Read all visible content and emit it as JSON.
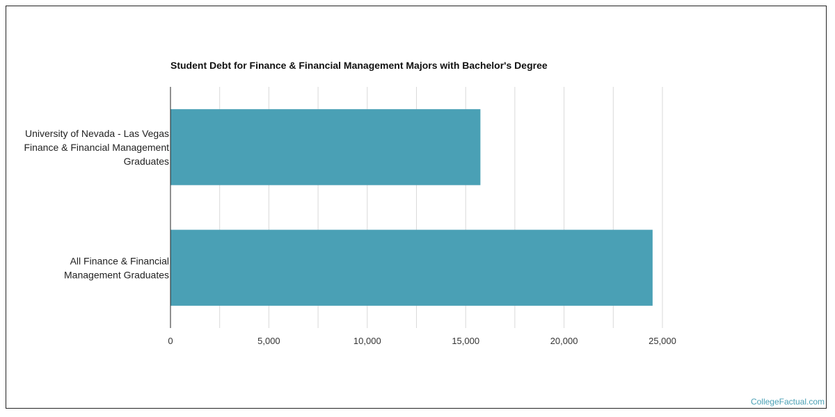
{
  "chart_data": {
    "type": "bar",
    "orientation": "horizontal",
    "title": "Student Debt for Finance & Financial Management Majors with Bachelor's Degree",
    "categories": [
      [
        "University of Nevada - Las Vegas",
        "Finance & Financial Management",
        "Graduates"
      ],
      [
        "All Finance & Financial",
        "Management Graduates"
      ]
    ],
    "values": [
      15750,
      24500
    ],
    "xlim": [
      0,
      25000
    ],
    "xticks": [
      "0",
      "5,000",
      "10,000",
      "15,000",
      "20,000",
      "25,000"
    ],
    "xtick_values": [
      0,
      5000,
      10000,
      15000,
      20000,
      25000
    ],
    "grid": true,
    "bar_color": "#4aa0b5"
  },
  "branding": {
    "watermark": "CollegeFactual.com"
  }
}
